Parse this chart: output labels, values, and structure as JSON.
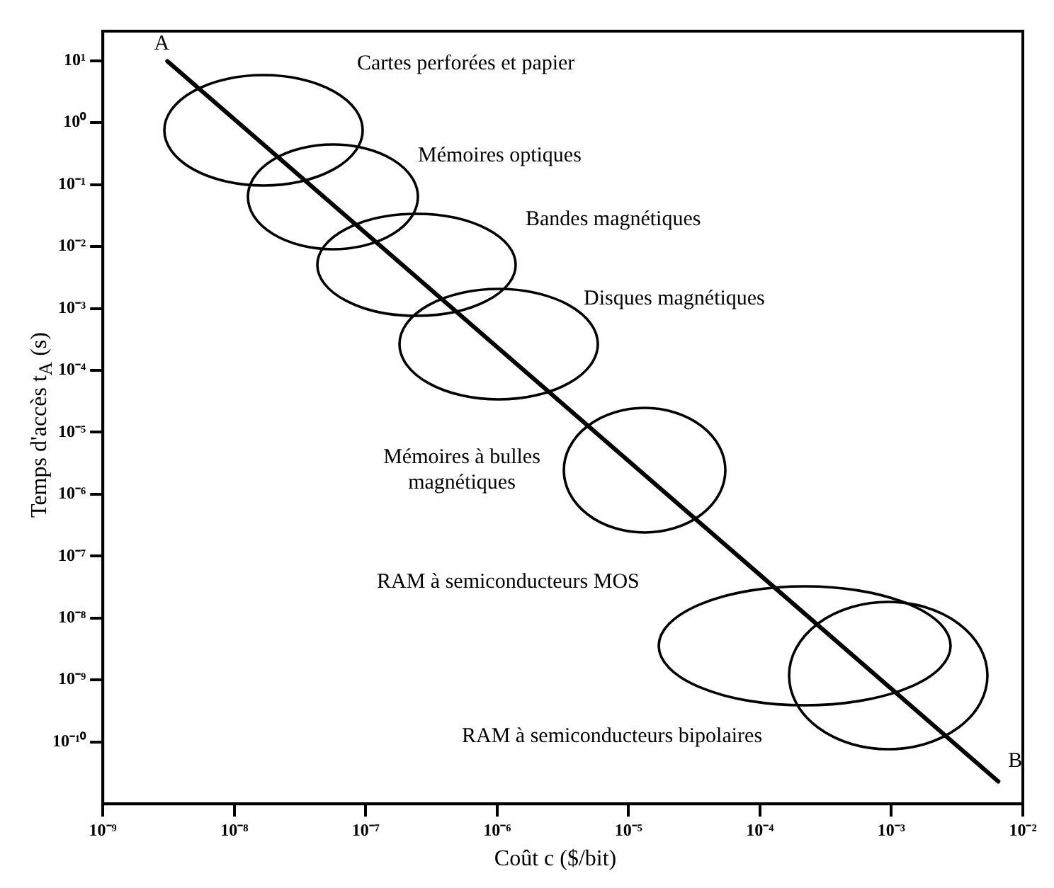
{
  "chart_data": {
    "type": "line",
    "xlabel": "Coût c ($/bit)",
    "ylabel": "Temps d'accès t$_{A}$ (s)",
    "log": "xy",
    "grid": false,
    "legend": false,
    "marker": "none",
    "line_style": "solid",
    "xlim": [
      1e-09,
      0.01
    ],
    "xticks": [
      {
        "value": 1e-09,
        "label": "10⁻⁹"
      },
      {
        "value": 1e-08,
        "label": "10⁻⁸"
      },
      {
        "value": 1e-07,
        "label": "10⁻⁷"
      },
      {
        "value": 1e-06,
        "label": "10⁻⁶"
      },
      {
        "value": 1e-05,
        "label": "10⁻⁵"
      },
      {
        "value": 0.0001,
        "label": "10⁻⁴"
      },
      {
        "value": 0.001,
        "label": "10⁻³"
      },
      {
        "value": 0.01,
        "label": "10⁻²"
      }
    ],
    "ylim": [
      1e-11,
      30
    ],
    "yticks": [
      {
        "value": 10,
        "label": "10¹"
      },
      {
        "value": 1,
        "label": "10⁰"
      },
      {
        "value": 0.1,
        "label": "10⁻¹"
      },
      {
        "value": 0.01,
        "label": "10⁻²"
      },
      {
        "value": 0.001,
        "label": "10⁻³"
      },
      {
        "value": 0.0001,
        "label": "10⁻⁴"
      },
      {
        "value": 1e-05,
        "label": "10⁻⁵"
      },
      {
        "value": 1e-06,
        "label": "10⁻⁶"
      },
      {
        "value": 1e-07,
        "label": "10⁻⁷"
      },
      {
        "value": 1e-08,
        "label": "10⁻⁸"
      },
      {
        "value": 1e-09,
        "label": "10⁻⁹"
      },
      {
        "value": 1e-10,
        "label": "10⁻¹⁰"
      }
    ],
    "series": [
      {
        "type": "line",
        "color": "#000000",
        "x": [
          3.1e-09,
          0.0065
        ],
        "values": [
          9.8,
          2.3e-11
        ]
      }
    ],
    "annotations": [
      "Cartes perforées et papier",
      "Mémoires optiques",
      "Bandes magnétiques",
      "Disques magnétiques",
      "Mémoires à bulles magnétiques",
      "RAM à semiconducteurs MOS",
      "RAM à semiconducteurs bipolaires",
      {
        "text": "A",
        "x": 3.1e-09,
        "y": 9.8
      },
      {
        "text": "B",
        "x": 0.0065,
        "y": 2.3e-11
      }
    ]
  }
}
